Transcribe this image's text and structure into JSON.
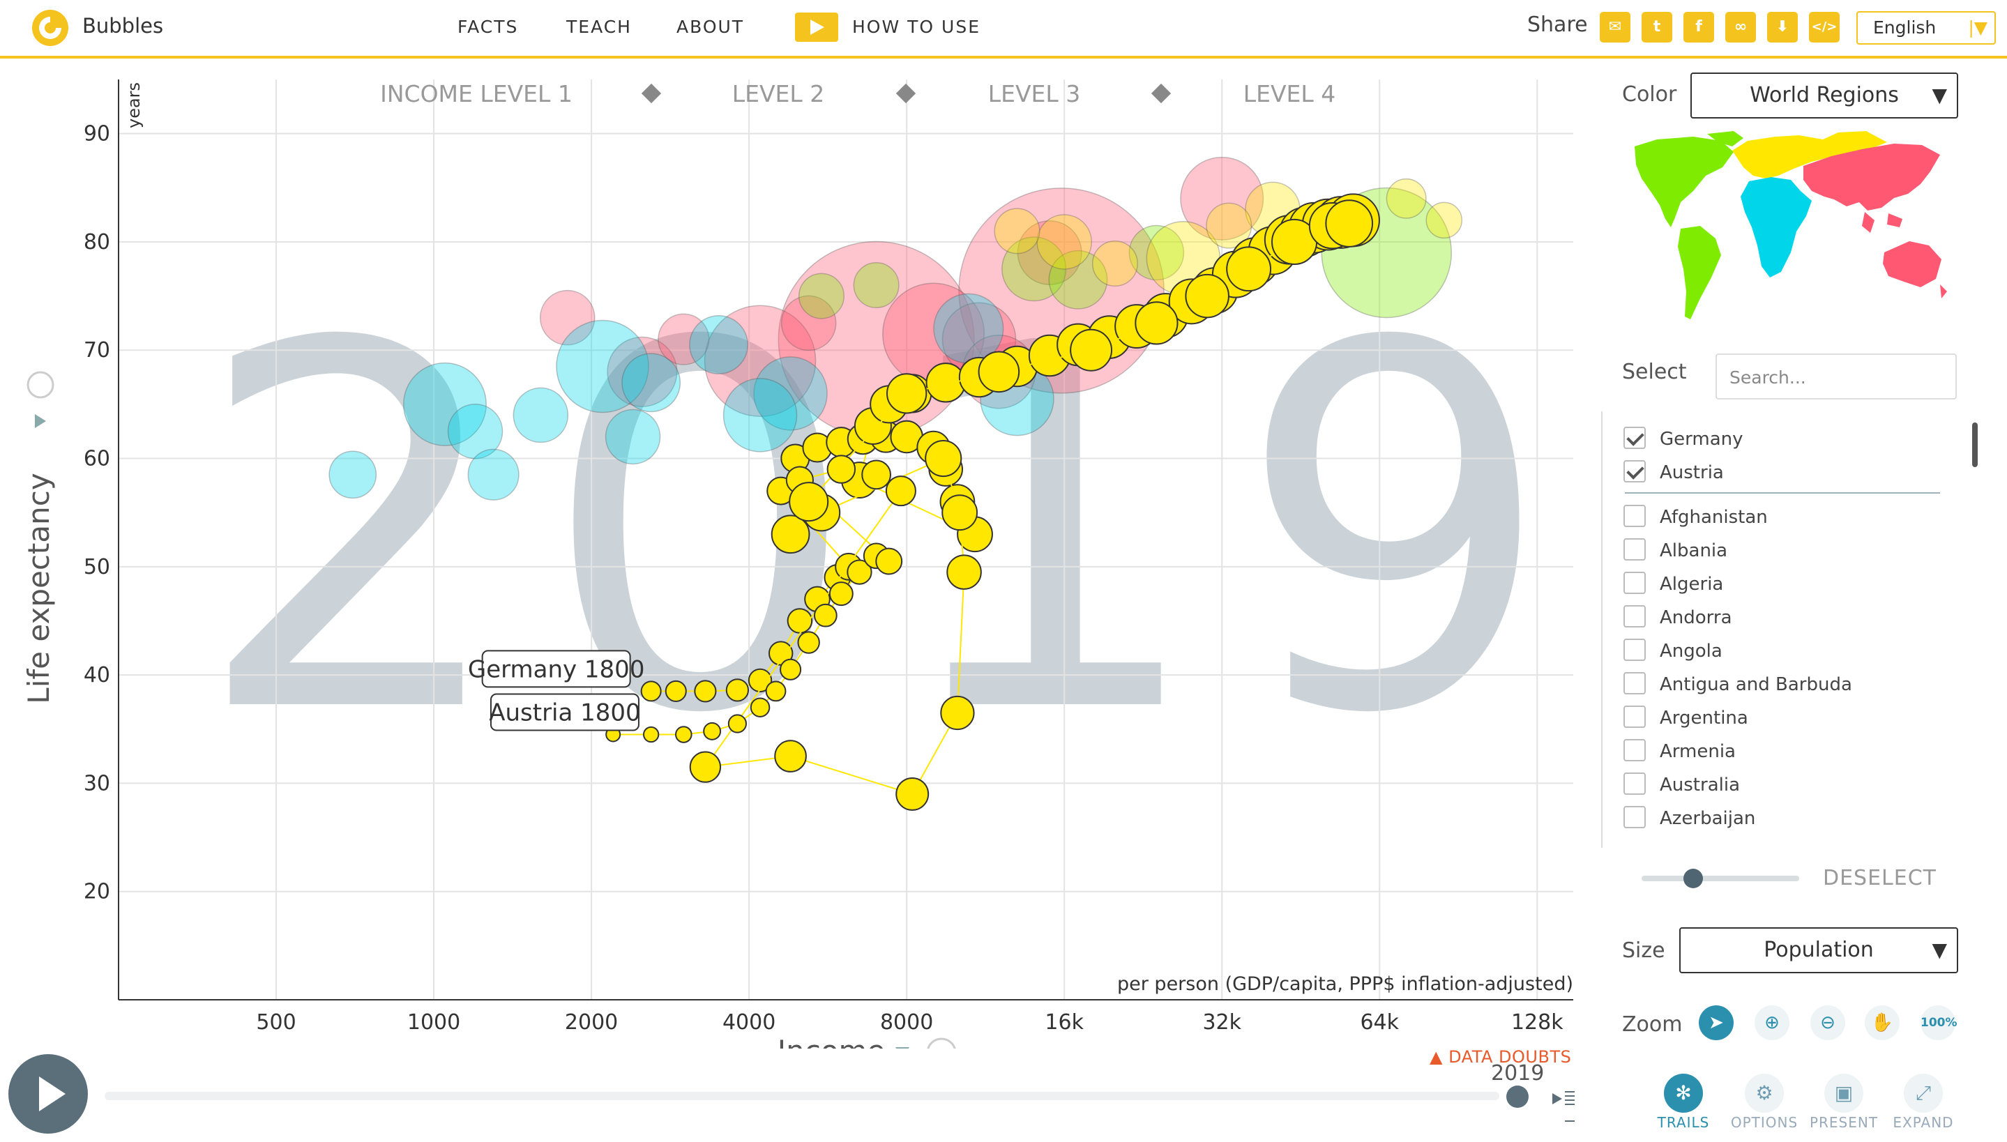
{
  "header": {
    "brand": "Bubbles",
    "nav": [
      "FACTS",
      "TEACH",
      "ABOUT"
    ],
    "how_to_use": "HOW TO USE",
    "share_label": "Share",
    "share_icons": [
      "mail-icon",
      "twitter-icon",
      "facebook-icon",
      "link-icon",
      "download-icon",
      "embed-icon"
    ],
    "language": "English"
  },
  "panel": {
    "color_label": "Color",
    "color_value": "World Regions",
    "region_colors": {
      "americas": "#7feb00",
      "europe": "#ffe700",
      "africa": "#00d5e9",
      "asia": "#ff5872"
    },
    "select_label": "Select",
    "search_placeholder": "Search...",
    "selected": [
      "Germany",
      "Austria"
    ],
    "countries": [
      "Afghanistan",
      "Albania",
      "Algeria",
      "Andorra",
      "Angola",
      "Antigua and Barbuda",
      "Argentina",
      "Armenia",
      "Australia",
      "Azerbaijan"
    ],
    "deselect": "DESELECT",
    "size_label": "Size",
    "size_value": "Population",
    "zoom_label": "Zoom",
    "zoom_100": "100%",
    "tools": [
      "TRAILS",
      "OPTIONS",
      "PRESENT",
      "EXPAND"
    ]
  },
  "timeline": {
    "year": "2019",
    "data_doubts": "DATA DOUBTS"
  },
  "chart_data": {
    "type": "scatter",
    "background_year": "2019",
    "xlabel": "Income",
    "xsublabel": "per person (GDP/capita, PPP$ inflation-adjusted)",
    "ylabel": "Life expectancy",
    "yunit": "years",
    "x_scale": "log",
    "xlim": [
      250,
      150000
    ],
    "ylim": [
      10,
      95
    ],
    "x_ticks": [
      500,
      1000,
      2000,
      4000,
      8000,
      16000,
      32000,
      64000,
      128000
    ],
    "x_tick_labels": [
      "500",
      "1000",
      "2000",
      "4000",
      "8000",
      "16k",
      "32k",
      "64k",
      "128k"
    ],
    "y_ticks": [
      20,
      30,
      40,
      50,
      60,
      70,
      80,
      90
    ],
    "income_levels": [
      "INCOME LEVEL 1",
      "LEVEL 2",
      "LEVEL 3",
      "LEVEL 4"
    ],
    "grid": true,
    "trail_labels": [
      {
        "text": "Germany 1800",
        "x": 2600,
        "y": 38.5
      },
      {
        "text": "Austria 1800",
        "x": 2700,
        "y": 34.5
      }
    ],
    "trails": [
      {
        "name": "Germany",
        "points": [
          [
            2600,
            38.5
          ],
          [
            2900,
            38.5
          ],
          [
            3300,
            38.5
          ],
          [
            3800,
            38.6
          ],
          [
            4200,
            39.5
          ],
          [
            4600,
            42
          ],
          [
            5000,
            45
          ],
          [
            5400,
            47
          ],
          [
            5900,
            49
          ],
          [
            6200,
            50
          ],
          [
            4600,
            57
          ],
          [
            4900,
            60
          ],
          [
            5400,
            61
          ],
          [
            6000,
            61.5
          ],
          [
            6600,
            61.8
          ],
          [
            7300,
            62
          ],
          [
            8000,
            62
          ],
          [
            9000,
            61
          ],
          [
            9500,
            59
          ],
          [
            10000,
            56
          ],
          [
            10800,
            53
          ],
          [
            6500,
            58
          ],
          [
            6900,
            63
          ],
          [
            7400,
            65
          ],
          [
            8200,
            66
          ],
          [
            9500,
            67
          ],
          [
            11000,
            67.5
          ],
          [
            13000,
            68.5
          ],
          [
            15000,
            69.5
          ],
          [
            17000,
            70.5
          ],
          [
            19500,
            71.2
          ],
          [
            22000,
            72.2
          ],
          [
            25000,
            73.2
          ],
          [
            28000,
            74.5
          ],
          [
            31000,
            75.5
          ],
          [
            34000,
            77
          ],
          [
            37000,
            78.2
          ],
          [
            40000,
            79.2
          ],
          [
            43000,
            80.2
          ],
          [
            46000,
            80.9
          ],
          [
            48000,
            81.3
          ],
          [
            51000,
            81.6
          ],
          [
            54000,
            81.8
          ],
          [
            57000,
            82
          ]
        ]
      },
      {
        "name": "Austria",
        "points": [
          [
            2200,
            34.5
          ],
          [
            2600,
            34.5
          ],
          [
            3000,
            34.5
          ],
          [
            3400,
            34.8
          ],
          [
            3800,
            35.5
          ],
          [
            4200,
            37
          ],
          [
            4500,
            38.5
          ],
          [
            4800,
            40.5
          ],
          [
            5200,
            43
          ],
          [
            5600,
            45.5
          ],
          [
            6000,
            47.5
          ],
          [
            6500,
            49.5
          ],
          [
            7000,
            51
          ],
          [
            7400,
            50.5
          ],
          [
            5000,
            58
          ],
          [
            6000,
            59
          ],
          [
            7000,
            58.5
          ],
          [
            7800,
            57
          ],
          [
            3300,
            31.5
          ],
          [
            4800,
            32.5
          ],
          [
            8200,
            29
          ],
          [
            10000,
            36.5
          ],
          [
            10300,
            49.5
          ],
          [
            10100,
            55
          ],
          [
            9400,
            60
          ],
          [
            5500,
            55
          ],
          [
            4800,
            53
          ],
          [
            5200,
            56
          ],
          [
            8000,
            66
          ],
          [
            12000,
            68
          ],
          [
            18000,
            70
          ],
          [
            24000,
            72.5
          ],
          [
            30000,
            75
          ],
          [
            36000,
            77.5
          ],
          [
            44000,
            80
          ],
          [
            52000,
            81.5
          ],
          [
            56000,
            81.7
          ]
        ]
      }
    ],
    "bubble_groups": [
      {
        "region": "asia",
        "points": [
          [
            7000,
            71,
            0.95
          ],
          [
            15800,
            75.5,
            1.0
          ],
          [
            4200,
            69,
            0.5
          ],
          [
            9000,
            71.5,
            0.45
          ],
          [
            32000,
            84,
            0.35
          ],
          [
            11000,
            71,
            0.3
          ],
          [
            2500,
            68,
            0.28
          ],
          [
            1800,
            73,
            0.2
          ],
          [
            15000,
            79,
            0.25
          ],
          [
            12000,
            68,
            0.3
          ],
          [
            3000,
            71,
            0.18
          ],
          [
            5200,
            72.5,
            0.2
          ]
        ]
      },
      {
        "region": "africa",
        "points": [
          [
            2100,
            68.5,
            0.4
          ],
          [
            1050,
            65,
            0.35
          ],
          [
            1200,
            62.5,
            0.2
          ],
          [
            4800,
            66,
            0.3
          ],
          [
            2600,
            67,
            0.22
          ],
          [
            3500,
            70.5,
            0.22
          ],
          [
            700,
            58.5,
            0.16
          ],
          [
            1300,
            58.5,
            0.18
          ],
          [
            2400,
            62,
            0.2
          ],
          [
            4200,
            64,
            0.3
          ],
          [
            13000,
            65.5,
            0.3
          ],
          [
            1600,
            64,
            0.2
          ],
          [
            10500,
            72,
            0.28
          ]
        ]
      },
      {
        "region": "americas",
        "points": [
          [
            66000,
            79,
            0.6
          ],
          [
            14000,
            77.5,
            0.25
          ],
          [
            17000,
            76.5,
            0.22
          ],
          [
            7000,
            76,
            0.15
          ],
          [
            5500,
            75,
            0.15
          ],
          [
            24000,
            79,
            0.2
          ]
        ]
      },
      {
        "region": "europe",
        "points": [
          [
            27000,
            78.5,
            0.3
          ],
          [
            16000,
            80,
            0.2
          ],
          [
            40000,
            83,
            0.2
          ],
          [
            13000,
            81,
            0.15
          ],
          [
            33000,
            81.5,
            0.15
          ],
          [
            72000,
            84,
            0.12
          ],
          [
            85000,
            82,
            0.1
          ],
          [
            20000,
            78,
            0.15
          ]
        ]
      }
    ]
  }
}
